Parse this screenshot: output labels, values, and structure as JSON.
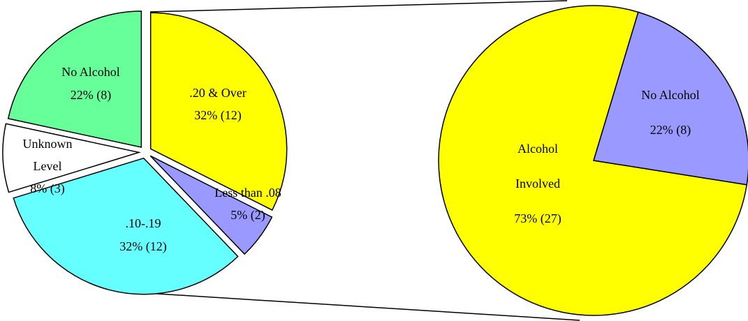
{
  "chart_data": [
    {
      "type": "pie",
      "categories": [
        ".20 & Over",
        "Less than .08",
        ".10-.19",
        "Unknown Level",
        "No Alcohol"
      ],
      "values": [
        12,
        2,
        12,
        3,
        8
      ],
      "value_labels": [
        "32% (12)",
        "5% (2)",
        "32% (12)",
        "8% (3)",
        "22% (8)"
      ],
      "colors": [
        "#ffff00",
        "#9999ff",
        "#66ffff",
        "#ffffff",
        "#66ff99"
      ],
      "exploded": true
    },
    {
      "type": "pie",
      "categories": [
        "Alcohol Involved",
        "No Alcohol"
      ],
      "values": [
        27,
        8
      ],
      "value_labels": [
        "73% (27)",
        "22% (8)"
      ],
      "colors": [
        "#ffff00",
        "#9999ff"
      ],
      "exploded": false
    }
  ]
}
